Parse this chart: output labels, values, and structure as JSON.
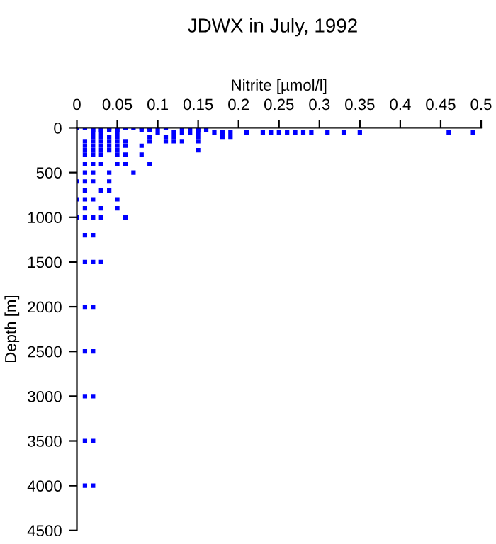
{
  "chart_data": {
    "type": "scatter",
    "title": "JDWX in July, 1992",
    "xlabel": "Nitrite [µmol/l]",
    "ylabel": "Depth [m]",
    "xlim": [
      0,
      0.5
    ],
    "xticks": [
      0,
      0.05,
      0.1,
      0.15,
      0.2,
      0.25,
      0.3,
      0.35,
      0.4,
      0.45,
      0.5
    ],
    "ylim": [
      4500,
      0
    ],
    "yticks": [
      0,
      500,
      1000,
      1500,
      2000,
      2500,
      3000,
      3500,
      4000,
      4500
    ],
    "grid": false,
    "legend": false,
    "marker": "square",
    "series": [
      {
        "color": "#0000ff",
        "x": [
          0,
          0.01,
          0.02,
          0.03,
          0.04,
          0.05,
          0.06,
          0.07,
          0.08,
          0.09,
          0.1,
          0.11,
          0.13,
          0.14,
          0.15,
          0.02,
          0.03,
          0.04,
          0.05,
          0.08,
          0.09,
          0.15,
          0.16,
          0.02,
          0.03,
          0.05,
          0.1,
          0.12,
          0.13,
          0.14,
          0.15,
          0.17,
          0.18,
          0.19,
          0.21,
          0.23,
          0.24,
          0.25,
          0.26,
          0.27,
          0.28,
          0.29,
          0.31,
          0.33,
          0.35,
          0.46,
          0.49,
          0.02,
          0.03,
          0.04,
          0.05,
          0.09,
          0.11,
          0.12,
          0.15,
          0.18,
          0.19,
          0.01,
          0.02,
          0.03,
          0.04,
          0.05,
          0.06,
          0.09,
          0.11,
          0.12,
          0.13,
          0.15,
          0.01,
          0.02,
          0.03,
          0.04,
          0.05,
          0.06,
          0.08,
          0.01,
          0.02,
          0.03,
          0.04,
          0.05,
          0.15,
          0.01,
          0.02,
          0.03,
          0.05,
          0.06,
          0.08,
          0.01,
          0.02,
          0.03,
          0.05,
          0.06,
          0.09,
          0.01,
          0.02,
          0.04,
          0.07,
          0,
          0.01,
          0.02,
          0.04,
          0.01,
          0.03,
          0.04,
          0,
          0.01,
          0.02,
          0.05,
          0.01,
          0.03,
          0.05,
          0,
          0.01,
          0.02,
          0.03,
          0.06,
          0.01,
          0.02,
          0.01,
          0.02,
          0.03,
          0.01,
          0.02,
          0.01,
          0.02,
          0.01,
          0.02,
          0.01,
          0.02,
          0.01,
          0.02
        ],
        "values": [
          0,
          0,
          0,
          0,
          0,
          0,
          0,
          0,
          0,
          0,
          0,
          0,
          0,
          0,
          0,
          20,
          20,
          20,
          20,
          20,
          20,
          20,
          20,
          50,
          50,
          50,
          50,
          50,
          50,
          50,
          50,
          50,
          50,
          50,
          50,
          50,
          50,
          50,
          50,
          50,
          50,
          50,
          50,
          50,
          50,
          50,
          50,
          100,
          100,
          100,
          100,
          100,
          100,
          100,
          100,
          100,
          100,
          150,
          150,
          150,
          150,
          150,
          150,
          150,
          150,
          150,
          150,
          150,
          200,
          200,
          200,
          200,
          200,
          200,
          200,
          250,
          250,
          250,
          250,
          250,
          250,
          300,
          300,
          300,
          300,
          300,
          300,
          400,
          400,
          400,
          400,
          400,
          400,
          500,
          500,
          500,
          500,
          600,
          600,
          600,
          600,
          700,
          700,
          700,
          800,
          800,
          800,
          800,
          900,
          900,
          900,
          1000,
          1000,
          1000,
          1000,
          1000,
          1200,
          1200,
          1500,
          1500,
          1500,
          2000,
          2000,
          2500,
          2500,
          3000,
          3000,
          3500,
          3500,
          4000,
          4000
        ]
      }
    ]
  }
}
